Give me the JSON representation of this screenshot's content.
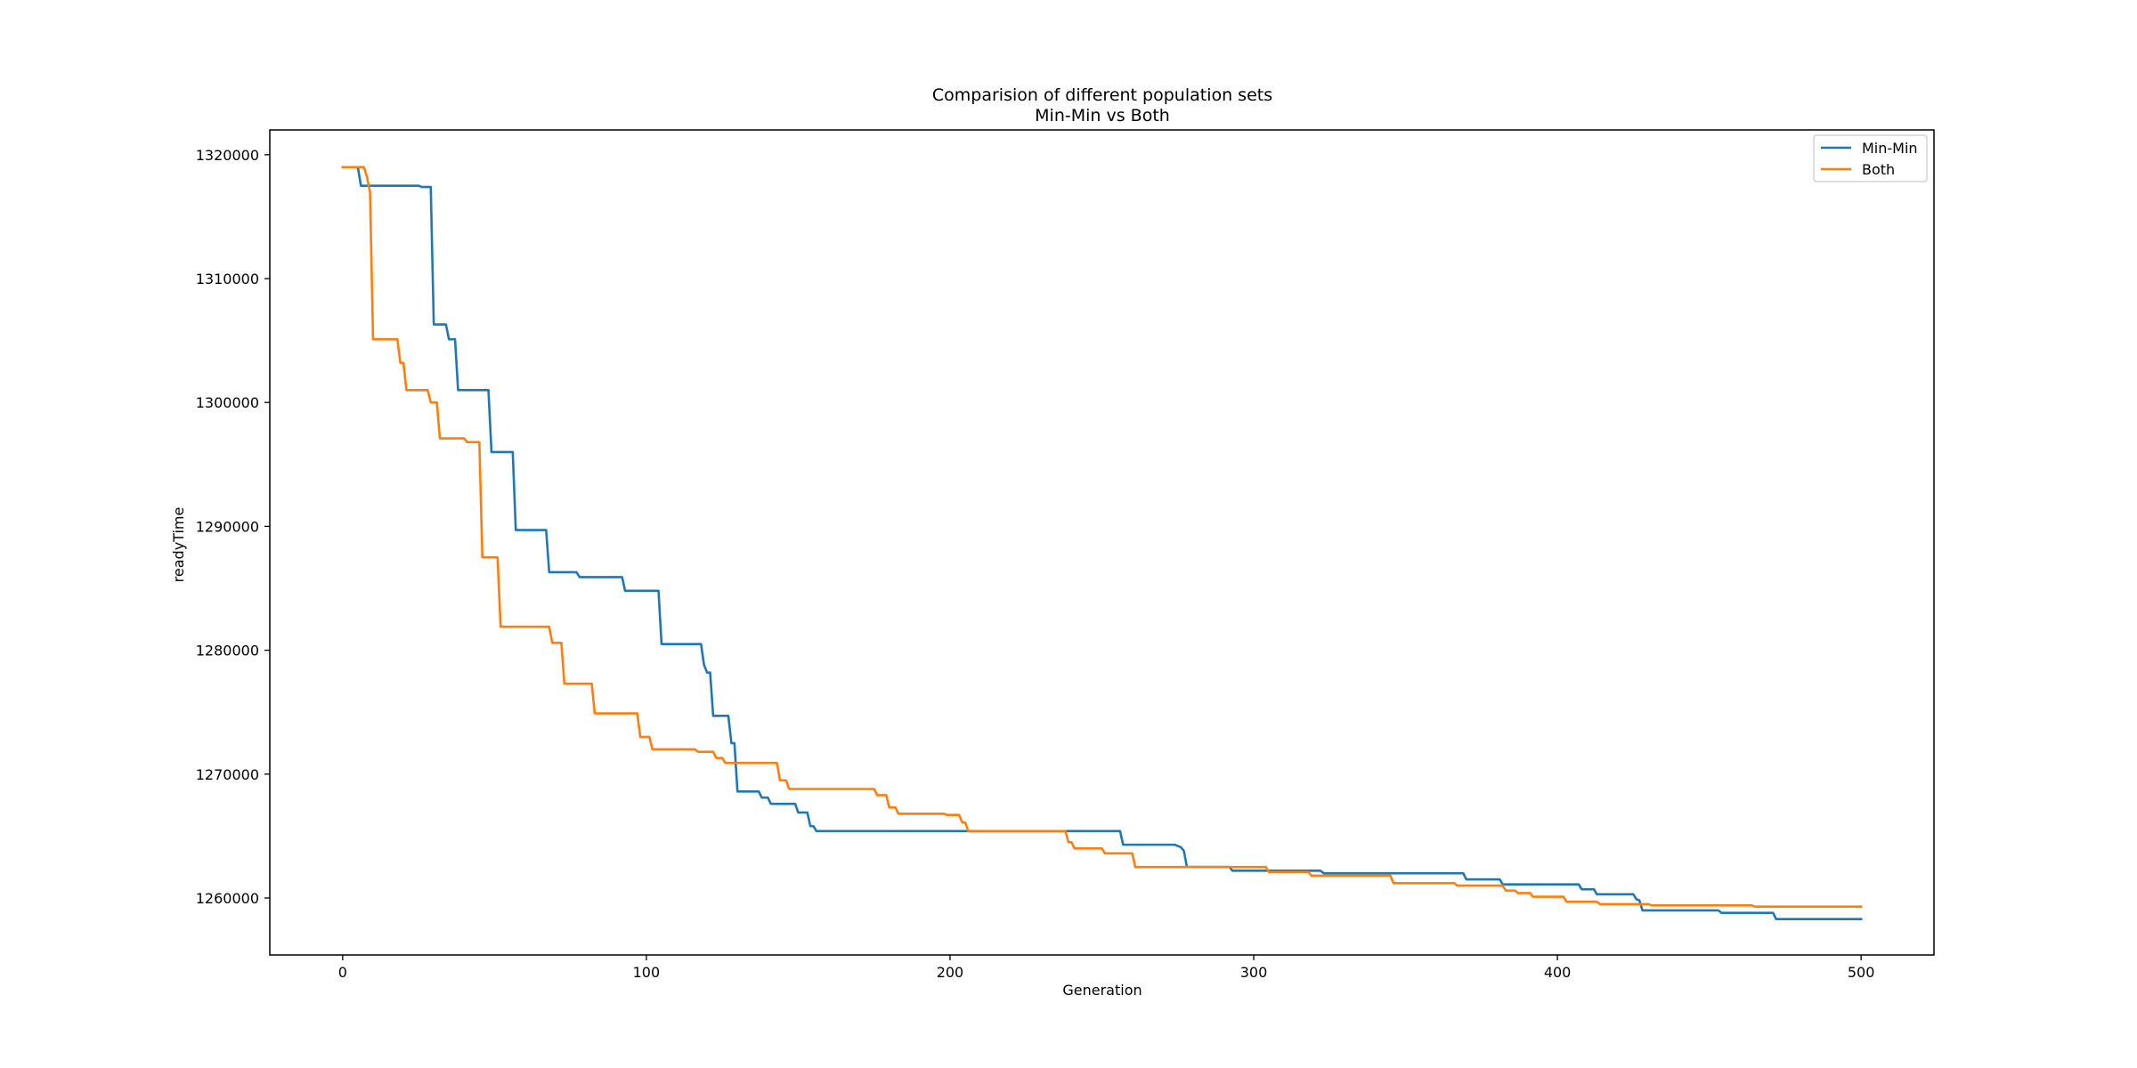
{
  "chart_data": {
    "type": "line",
    "title": "Comparision of different population sets",
    "subtitle": "Min-Min vs Both",
    "xlabel": "Generation",
    "ylabel": "readyTime",
    "xlim": [
      -24,
      524
    ],
    "ylim": [
      1255400,
      1322000
    ],
    "xticks": [
      0,
      100,
      200,
      300,
      400,
      500
    ],
    "yticks": [
      1260000,
      1270000,
      1280000,
      1290000,
      1300000,
      1310000,
      1320000
    ],
    "grid": false,
    "legend_position": "top-right",
    "series": [
      {
        "name": "Min-Min",
        "color": "#1f77b4",
        "points": [
          [
            0,
            1319000
          ],
          [
            5,
            1319000
          ],
          [
            6,
            1317500
          ],
          [
            25,
            1317500
          ],
          [
            26,
            1317400
          ],
          [
            29,
            1317400
          ],
          [
            30,
            1306300
          ],
          [
            34,
            1306300
          ],
          [
            35,
            1305100
          ],
          [
            37,
            1305100
          ],
          [
            38,
            1301000
          ],
          [
            48,
            1301000
          ],
          [
            49,
            1296000
          ],
          [
            56,
            1296000
          ],
          [
            57,
            1289700
          ],
          [
            67,
            1289700
          ],
          [
            68,
            1286300
          ],
          [
            77,
            1286300
          ],
          [
            78,
            1285900
          ],
          [
            92,
            1285900
          ],
          [
            93,
            1284800
          ],
          [
            104,
            1284800
          ],
          [
            105,
            1280500
          ],
          [
            118,
            1280500
          ],
          [
            119,
            1278800
          ],
          [
            120,
            1278200
          ],
          [
            121,
            1278200
          ],
          [
            122,
            1274700
          ],
          [
            127,
            1274700
          ],
          [
            128,
            1272500
          ],
          [
            129,
            1272500
          ],
          [
            130,
            1268600
          ],
          [
            137,
            1268600
          ],
          [
            138,
            1268100
          ],
          [
            140,
            1268100
          ],
          [
            141,
            1267600
          ],
          [
            149,
            1267600
          ],
          [
            150,
            1266900
          ],
          [
            153,
            1266900
          ],
          [
            154,
            1265800
          ],
          [
            155,
            1265800
          ],
          [
            156,
            1265400
          ],
          [
            256,
            1265400
          ],
          [
            257,
            1264300
          ],
          [
            274,
            1264300
          ],
          [
            276,
            1264100
          ],
          [
            277,
            1263800
          ],
          [
            278,
            1262500
          ],
          [
            292,
            1262500
          ],
          [
            293,
            1262200
          ],
          [
            322,
            1262200
          ],
          [
            323,
            1262000
          ],
          [
            369,
            1262000
          ],
          [
            370,
            1261500
          ],
          [
            381,
            1261500
          ],
          [
            382,
            1261100
          ],
          [
            407,
            1261100
          ],
          [
            408,
            1260700
          ],
          [
            412,
            1260700
          ],
          [
            413,
            1260300
          ],
          [
            425,
            1260300
          ],
          [
            426,
            1259900
          ],
          [
            427,
            1259800
          ],
          [
            428,
            1259000
          ],
          [
            453,
            1259000
          ],
          [
            454,
            1258800
          ],
          [
            471,
            1258800
          ],
          [
            472,
            1258300
          ],
          [
            500,
            1258300
          ]
        ]
      },
      {
        "name": "Both",
        "color": "#ff7f0e",
        "points": [
          [
            0,
            1319000
          ],
          [
            7,
            1319000
          ],
          [
            8,
            1318200
          ],
          [
            9,
            1317000
          ],
          [
            10,
            1305100
          ],
          [
            18,
            1305100
          ],
          [
            19,
            1303200
          ],
          [
            20,
            1303200
          ],
          [
            21,
            1301000
          ],
          [
            28,
            1301000
          ],
          [
            29,
            1300000
          ],
          [
            31,
            1300000
          ],
          [
            32,
            1297100
          ],
          [
            40,
            1297100
          ],
          [
            41,
            1296800
          ],
          [
            45,
            1296800
          ],
          [
            46,
            1287500
          ],
          [
            51,
            1287500
          ],
          [
            52,
            1281900
          ],
          [
            68,
            1281900
          ],
          [
            69,
            1280600
          ],
          [
            72,
            1280600
          ],
          [
            73,
            1277300
          ],
          [
            82,
            1277300
          ],
          [
            83,
            1274900
          ],
          [
            97,
            1274900
          ],
          [
            98,
            1273000
          ],
          [
            101,
            1273000
          ],
          [
            102,
            1272000
          ],
          [
            116,
            1272000
          ],
          [
            117,
            1271800
          ],
          [
            122,
            1271800
          ],
          [
            123,
            1271300
          ],
          [
            125,
            1271300
          ],
          [
            126,
            1270900
          ],
          [
            143,
            1270900
          ],
          [
            144,
            1269500
          ],
          [
            146,
            1269500
          ],
          [
            147,
            1268800
          ],
          [
            175,
            1268800
          ],
          [
            176,
            1268300
          ],
          [
            179,
            1268300
          ],
          [
            180,
            1267300
          ],
          [
            182,
            1267300
          ],
          [
            183,
            1266800
          ],
          [
            198,
            1266800
          ],
          [
            199,
            1266700
          ],
          [
            203,
            1266700
          ],
          [
            204,
            1266100
          ],
          [
            205,
            1266100
          ],
          [
            206,
            1265400
          ],
          [
            238,
            1265400
          ],
          [
            239,
            1264500
          ],
          [
            240,
            1264500
          ],
          [
            241,
            1264000
          ],
          [
            250,
            1264000
          ],
          [
            251,
            1263600
          ],
          [
            260,
            1263600
          ],
          [
            261,
            1262500
          ],
          [
            304,
            1262500
          ],
          [
            305,
            1262100
          ],
          [
            318,
            1262100
          ],
          [
            319,
            1261800
          ],
          [
            345,
            1261800
          ],
          [
            346,
            1261200
          ],
          [
            366,
            1261200
          ],
          [
            367,
            1261000
          ],
          [
            382,
            1261000
          ],
          [
            383,
            1260600
          ],
          [
            386,
            1260600
          ],
          [
            387,
            1260400
          ],
          [
            391,
            1260400
          ],
          [
            392,
            1260100
          ],
          [
            402,
            1260100
          ],
          [
            403,
            1259700
          ],
          [
            413,
            1259700
          ],
          [
            414,
            1259500
          ],
          [
            430,
            1259500
          ],
          [
            431,
            1259400
          ],
          [
            464,
            1259400
          ],
          [
            465,
            1259300
          ],
          [
            500,
            1259300
          ]
        ]
      }
    ]
  }
}
